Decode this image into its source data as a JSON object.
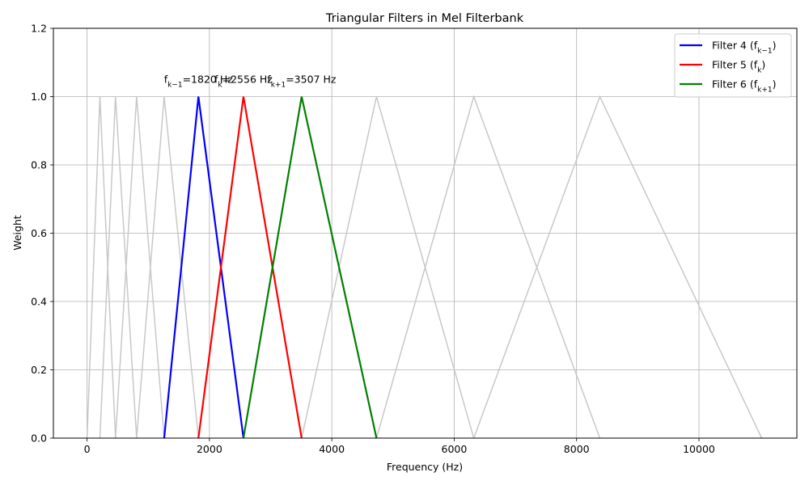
{
  "chart_data": {
    "type": "line",
    "title": "Triangular Filters in Mel Filterbank",
    "xlabel": "Frequency (Hz)",
    "ylabel": "Weight",
    "xlim": [
      -550,
      11600
    ],
    "ylim": [
      0,
      1.2
    ],
    "xticks": [
      0,
      2000,
      4000,
      6000,
      8000,
      10000
    ],
    "xtick_labels": [
      "0",
      "2000",
      "4000",
      "6000",
      "8000",
      "10000"
    ],
    "yticks": [
      0.0,
      0.2,
      0.4,
      0.6,
      0.8,
      1.0,
      1.2
    ],
    "ytick_labels": [
      "0.0",
      "0.2",
      "0.4",
      "0.6",
      "0.8",
      "1.0",
      "1.2"
    ],
    "grid": true,
    "legend_position": "top-right",
    "background_filters": [
      {
        "points": [
          [
            0,
            0
          ],
          [
            210,
            1
          ],
          [
            465,
            0
          ]
        ]
      },
      {
        "points": [
          [
            210,
            0
          ],
          [
            465,
            1
          ],
          [
            810,
            0
          ]
        ]
      },
      {
        "points": [
          [
            465,
            0
          ],
          [
            810,
            1
          ],
          [
            1260,
            0
          ]
        ]
      },
      {
        "points": [
          [
            810,
            0
          ],
          [
            1260,
            1
          ],
          [
            1820,
            0
          ]
        ]
      },
      {
        "points": [
          [
            3507,
            0
          ],
          [
            4730,
            1
          ],
          [
            6320,
            0
          ]
        ]
      },
      {
        "points": [
          [
            4730,
            0
          ],
          [
            6320,
            1
          ],
          [
            8380,
            0
          ]
        ]
      },
      {
        "points": [
          [
            6320,
            0
          ],
          [
            8380,
            1
          ],
          [
            11025,
            0
          ]
        ]
      }
    ],
    "series": [
      {
        "name": "Filter 4 (f_{k−1})",
        "legend_main": "Filter 4 (f",
        "legend_sub": "k−1",
        "legend_tail": ")",
        "color": "#0000ff",
        "points": [
          [
            1260,
            0
          ],
          [
            1820,
            1
          ],
          [
            2556,
            0
          ]
        ]
      },
      {
        "name": "Filter 5 (f_k)",
        "legend_main": "Filter 5 (f",
        "legend_sub": "k",
        "legend_tail": ")",
        "color": "#ff0000",
        "points": [
          [
            1820,
            0
          ],
          [
            2556,
            1
          ],
          [
            3507,
            0
          ]
        ]
      },
      {
        "name": "Filter 6 (f_{k+1})",
        "legend_main": "Filter 6 (f",
        "legend_sub": "k+1",
        "legend_tail": ")",
        "color": "#008000",
        "points": [
          [
            2556,
            0
          ],
          [
            3507,
            1
          ],
          [
            4730,
            0
          ]
        ]
      }
    ],
    "annotations": [
      {
        "main": "f",
        "sub": "k−1",
        "tail": "=1820 Hz",
        "x": 1820,
        "y": 1.05
      },
      {
        "main": "f",
        "sub": "k",
        "tail": "=2556 Hz",
        "x": 2556,
        "y": 1.05
      },
      {
        "main": "f",
        "sub": "k+1",
        "tail": "=3507 Hz",
        "x": 3507,
        "y": 1.05
      }
    ],
    "colors": {
      "background_filter": "#c8c8c8",
      "grid": "#b0b0b0",
      "axis": "#000000"
    }
  }
}
